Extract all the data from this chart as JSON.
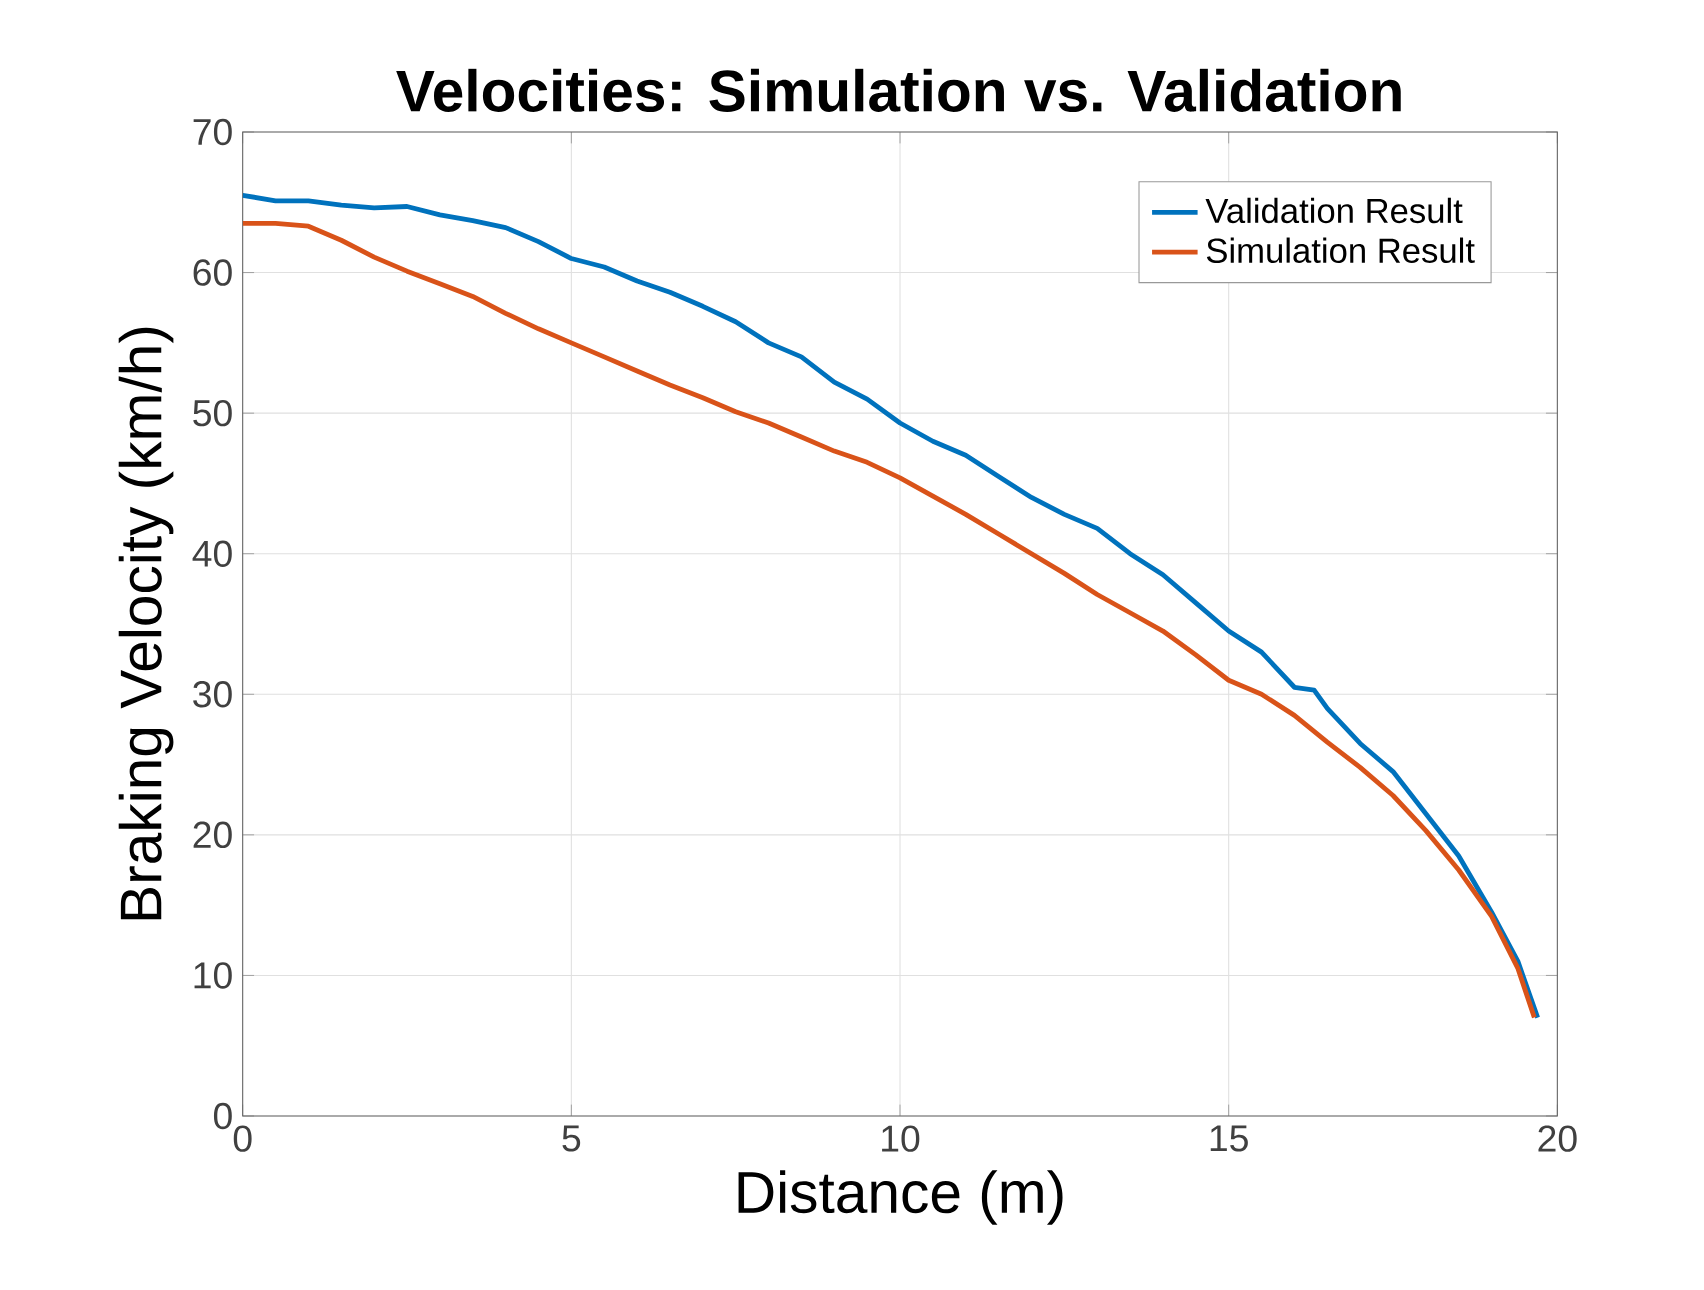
{
  "chart_data": {
    "type": "line",
    "title": "Velocities: Simulation vs. Validation",
    "xlabel": "Distance (m)",
    "ylabel": "Braking Velocity (km/h)",
    "xlim": [
      0,
      20
    ],
    "ylim": [
      0,
      70
    ],
    "xticks": [
      0,
      5,
      10,
      15,
      20
    ],
    "yticks": [
      0,
      10,
      20,
      30,
      40,
      50,
      60,
      70
    ],
    "grid": true,
    "legend": "top right",
    "line_style": "solid",
    "marker": "none",
    "series": [
      {
        "name": "Validation Result",
        "color": "#0072bd",
        "x": [
          0,
          0.5,
          1,
          1.5,
          2,
          2.5,
          3,
          3.5,
          4,
          4.5,
          5,
          5.5,
          6,
          6.5,
          7,
          7.5,
          8,
          8.5,
          9,
          9.5,
          10,
          10.5,
          11,
          11.5,
          12,
          12.5,
          13,
          13.5,
          14,
          14.5,
          15,
          15.5,
          16,
          16.3,
          16.5,
          17,
          17.5,
          18,
          18.5,
          19,
          19.4,
          19.7
        ],
        "values": [
          65.5,
          65.1,
          65.1,
          64.8,
          64.6,
          64.7,
          64.1,
          63.7,
          63.2,
          62.2,
          61,
          60.4,
          59.4,
          58.6,
          57.6,
          56.5,
          55,
          54,
          52.2,
          51,
          49.3,
          48,
          47,
          45.5,
          44,
          42.8,
          41.8,
          40,
          38.5,
          36.5,
          34.5,
          33,
          30.5,
          30.3,
          29,
          26.5,
          24.5,
          21.5,
          18.5,
          14.5,
          11,
          7
        ]
      },
      {
        "name": "Simulation Result",
        "color": "#d95319",
        "x": [
          0,
          0.5,
          1,
          1.5,
          2,
          2.5,
          3,
          3.5,
          4,
          4.5,
          5,
          5.5,
          6,
          6.5,
          7,
          7.5,
          8,
          8.5,
          9,
          9.5,
          10,
          10.5,
          11,
          11.5,
          12,
          12.5,
          13,
          13.5,
          14,
          14.5,
          15,
          15.5,
          16,
          16.5,
          17,
          17.5,
          18,
          18.5,
          19,
          19.4,
          19.65
        ],
        "values": [
          63.5,
          63.5,
          63.3,
          62.3,
          61.1,
          60.1,
          59.2,
          58.3,
          57.1,
          56,
          55,
          54,
          53,
          52,
          51.1,
          50.1,
          49.3,
          48.3,
          47.3,
          46.5,
          45.4,
          44.1,
          42.8,
          41.4,
          40,
          38.6,
          37.1,
          35.8,
          34.5,
          32.8,
          31,
          30,
          28.5,
          26.6,
          24.8,
          22.8,
          20.3,
          17.5,
          14.2,
          10.5,
          7
        ]
      }
    ]
  }
}
